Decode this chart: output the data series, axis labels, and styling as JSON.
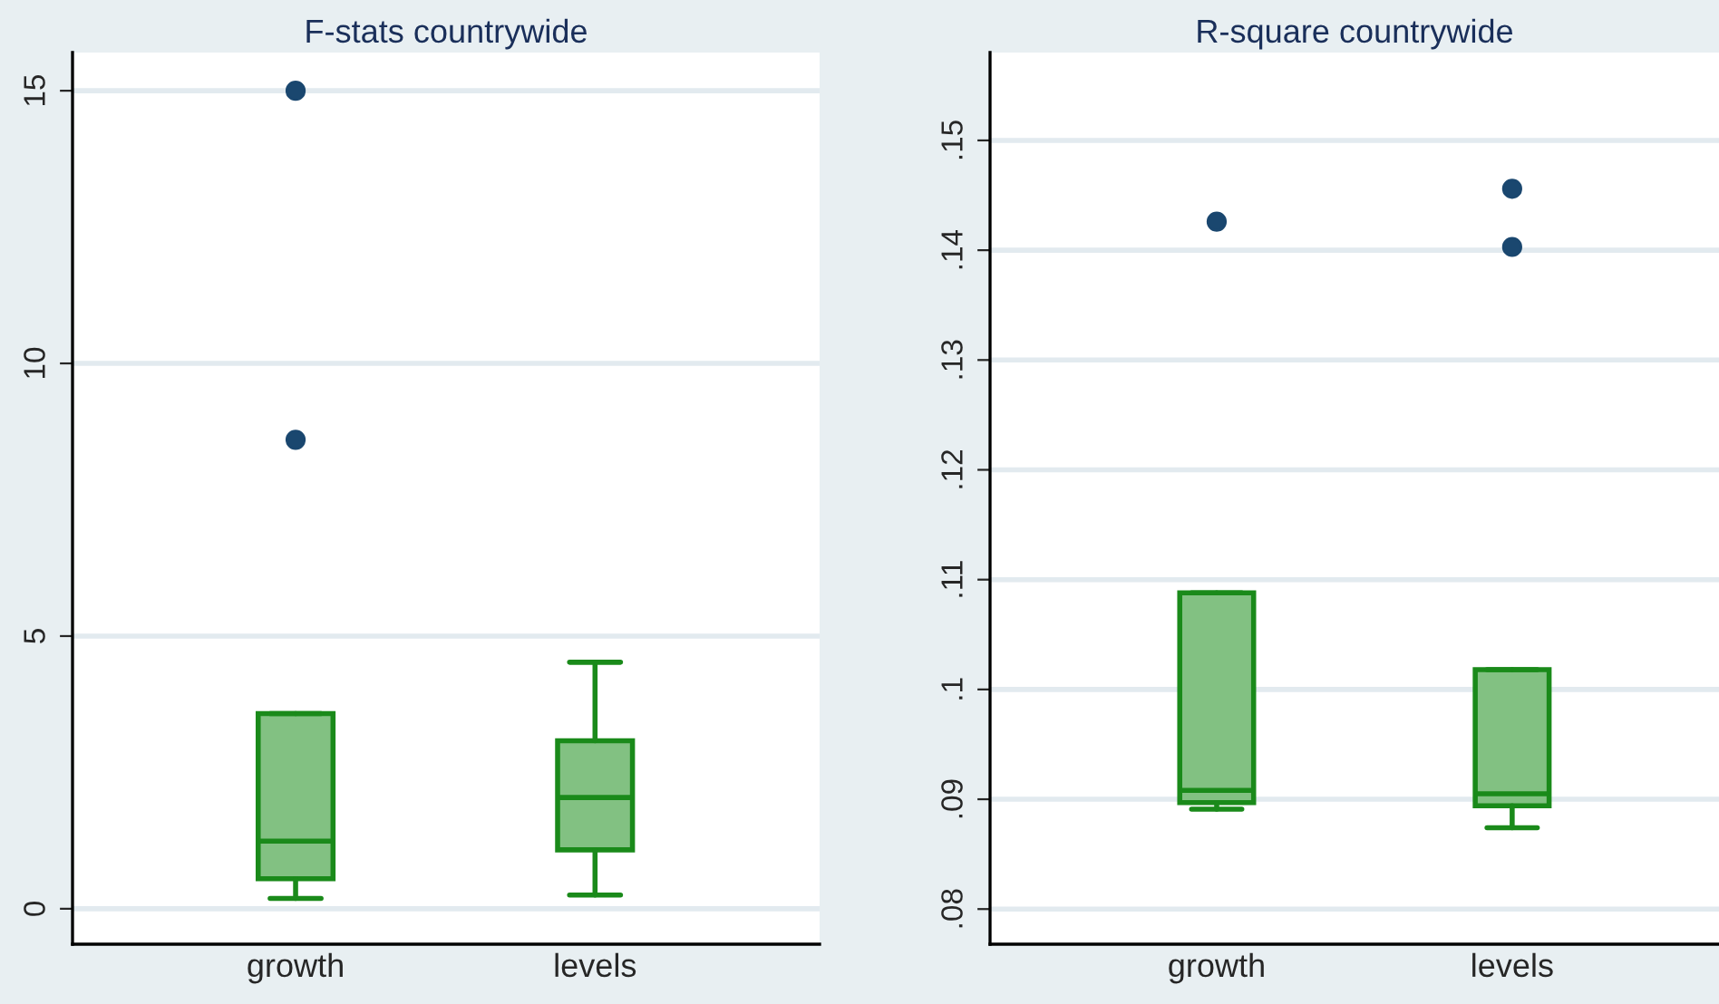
{
  "chart_data": [
    {
      "type": "box",
      "title": "F-stats countrywide",
      "categories": [
        "growth",
        "levels"
      ],
      "ylim": [
        -0.65,
        15.7
      ],
      "yticks": [
        0,
        5,
        10,
        15
      ],
      "grid": "y",
      "series": [
        {
          "color": "#82c182",
          "boxes": [
            {
              "low": 0.19,
              "q1": 0.55,
              "median": 1.24,
              "q3": 3.58,
              "high": 3.58,
              "outliers": [
                15.0,
                8.6
              ]
            },
            {
              "low": 0.25,
              "q1": 1.08,
              "median": 2.04,
              "q3": 3.08,
              "high": 4.52
            }
          ]
        }
      ]
    },
    {
      "type": "box",
      "title": "R-square countrywide",
      "categories": [
        "growth",
        "levels"
      ],
      "ylim": [
        0.0768,
        0.158
      ],
      "yticks": [
        {
          "value": 0.08,
          "label": ".08"
        },
        {
          "value": 0.09,
          "label": ".09"
        },
        {
          "value": 0.1,
          "label": ".1"
        },
        {
          "value": 0.11,
          "label": ".11"
        },
        {
          "value": 0.12,
          "label": ".12"
        },
        {
          "value": 0.13,
          "label": ".13"
        },
        {
          "value": 0.14,
          "label": ".14"
        },
        {
          "value": 0.15,
          "label": ".15"
        }
      ],
      "grid": "y",
      "series": [
        {
          "color": "#82c182",
          "boxes": [
            {
              "low": 0.0891,
              "q1": 0.0897,
              "median": 0.0908,
              "q3": 0.1088,
              "high": 0.1088,
              "outliers": [
                0.1426
              ]
            },
            {
              "low": 0.0874,
              "q1": 0.0894,
              "median": 0.0905,
              "q3": 0.1018,
              "high": 0.1018,
              "outliers": [
                0.1456,
                0.1403
              ]
            }
          ]
        }
      ]
    }
  ]
}
